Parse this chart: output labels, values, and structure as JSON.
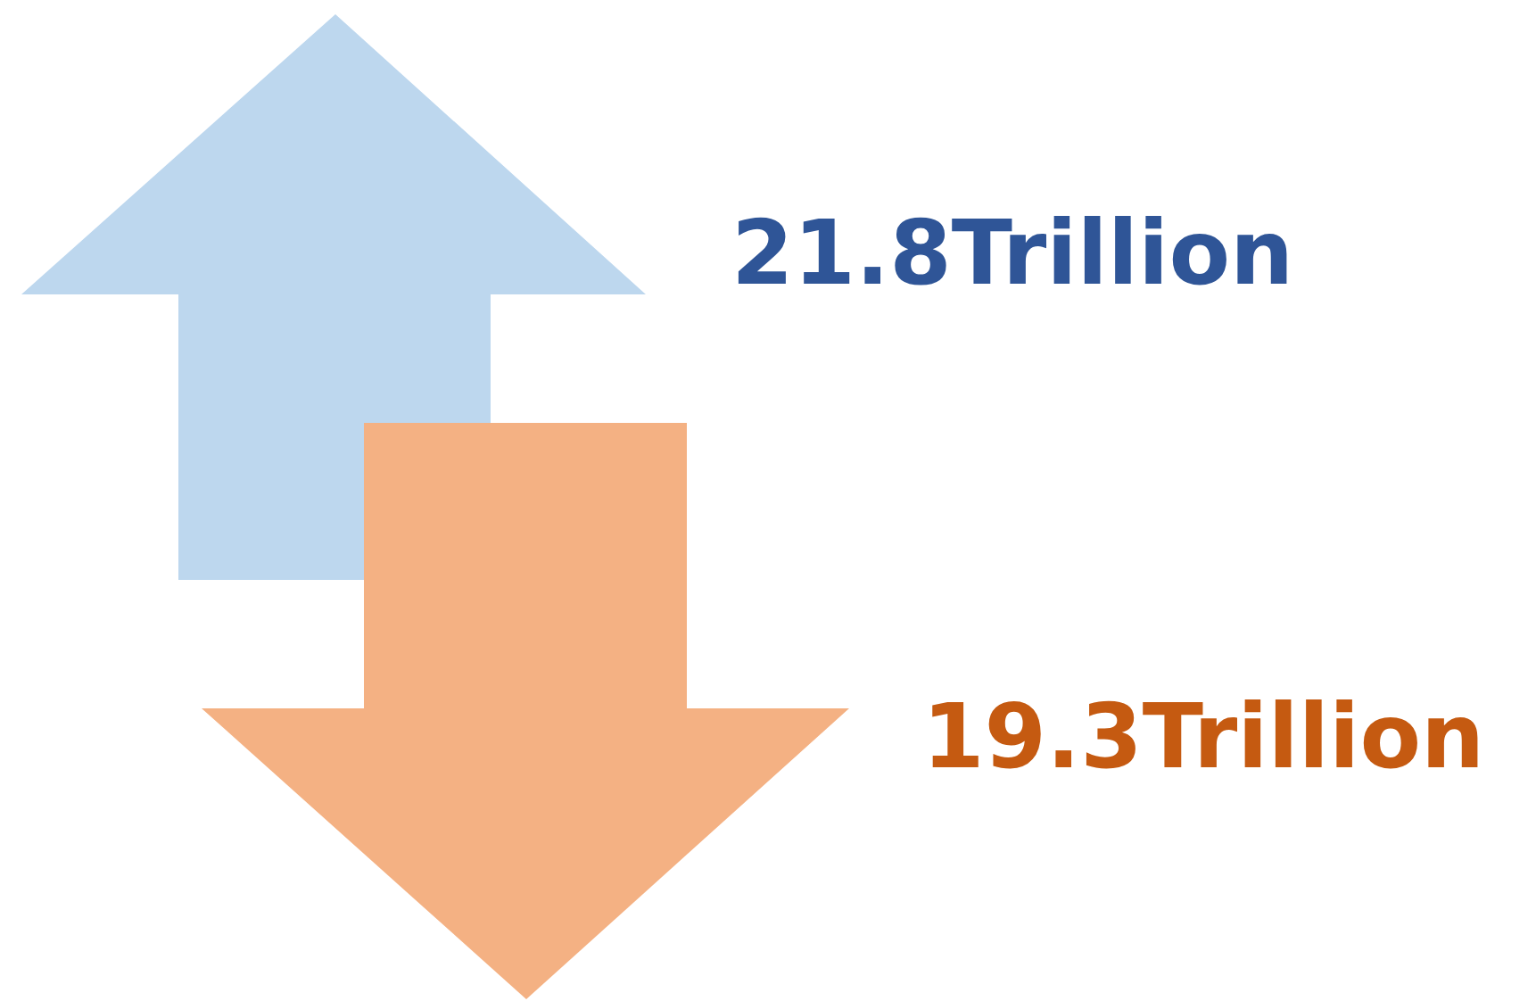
{
  "chart_data": {
    "type": "other",
    "categories": [
      null,
      null
    ],
    "values": [
      21.8,
      19.3
    ],
    "value_labels": [
      "21.8Trillion",
      "19.3Trillion"
    ],
    "colors": [
      "#2f5597",
      "#c55a11"
    ]
  }
}
